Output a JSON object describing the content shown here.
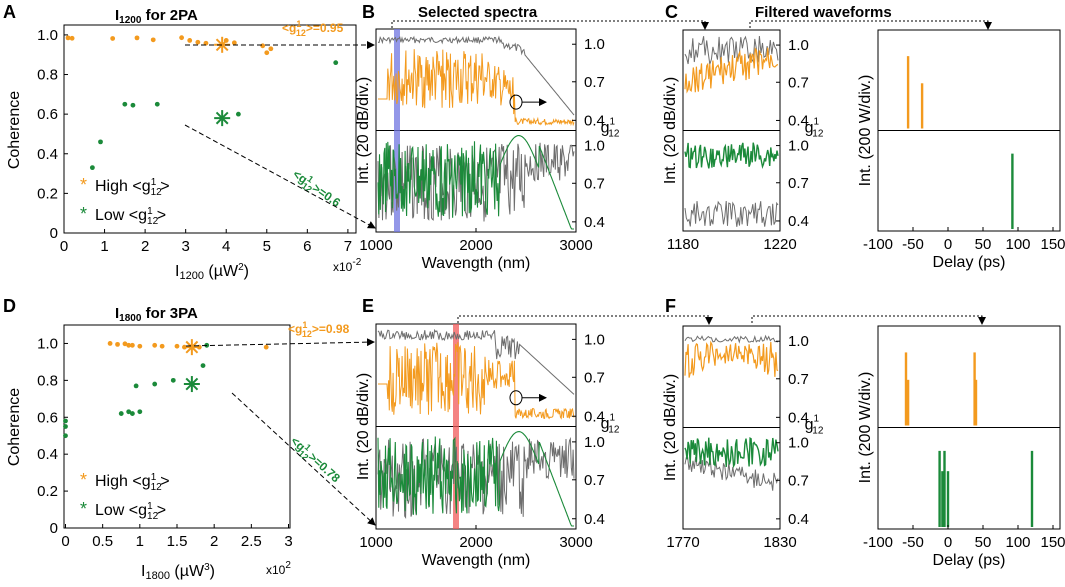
{
  "colors": {
    "high": "#f39a1e",
    "low": "#1b8a3a",
    "gray": "#6e6e6e",
    "blue_band": "#6f74e0",
    "red_band": "#f05a5a"
  },
  "panel_labels": {
    "A": "A",
    "B": "B",
    "C": "C",
    "D": "D",
    "E": "E",
    "F": "F"
  },
  "headers": {
    "selected_spectra": "Selected spectra",
    "filtered_waveforms": "Filtered waveforms"
  },
  "chart_data": [
    {
      "id": "A",
      "type": "scatter",
      "title_main": "I",
      "title_sub": "1200",
      "title_rest": " for 2PA",
      "ylabel": "Coherence",
      "xlabel_main": "I",
      "xlabel_sub": "1200",
      "xlabel_rest": " (µW",
      "xlabel_sup": "2",
      "xlabel_end": ")",
      "x_scale": "x10",
      "x_scale_sup": "-2",
      "xlim": [
        0,
        7.2
      ],
      "ylim": [
        0,
        1.05
      ],
      "xticks": [
        "0",
        "1",
        "2",
        "3",
        "4",
        "5",
        "6",
        "7"
      ],
      "yticks": [
        "0",
        "0.2",
        "0.4",
        "0.6",
        "0.8",
        "1.0"
      ],
      "series": [
        {
          "name": "High <g12>",
          "x": [
            0.1,
            0.2,
            1.2,
            1.8,
            2.2,
            2.9,
            3.1,
            3.3,
            3.5,
            4.0,
            4.2,
            4.9,
            5.0,
            5.1
          ],
          "y": [
            0.985,
            0.983,
            0.982,
            0.985,
            0.975,
            0.986,
            0.972,
            0.963,
            0.958,
            0.972,
            0.96,
            0.945,
            0.91,
            0.93
          ]
        },
        {
          "name": "Low <g12>",
          "x": [
            0.7,
            0.9,
            1.5,
            1.7,
            2.3,
            4.3,
            6.7
          ],
          "y": [
            0.33,
            0.46,
            0.65,
            0.645,
            0.65,
            0.6,
            0.86
          ]
        }
      ],
      "highlight": [
        {
          "series": "High",
          "x": 3.9,
          "y": 0.95
        },
        {
          "series": "Low",
          "x": 3.9,
          "y": 0.58
        }
      ],
      "legend": {
        "high_label": "High <g",
        "low_label": "Low <g",
        "sub": "12",
        "sup": "1",
        "close": ">"
      },
      "annotations": [
        {
          "series": "High",
          "text": "<g",
          "sup": "1",
          "sub": "12",
          "rest": ">=0.95"
        },
        {
          "series": "Low",
          "text": "<g",
          "sup": "1",
          "sub": "12",
          "rest": ">=0.6"
        }
      ]
    },
    {
      "id": "B",
      "type": "line",
      "xlabel": "Wavength (nm)",
      "xticks": [
        "1000",
        "2000",
        "3000"
      ],
      "xlim": [
        1000,
        3000
      ],
      "ylabel": "Int. (20 dB/div.)",
      "right_ticks": [
        "1.0",
        "0.7",
        "0.4"
      ],
      "right_label": "g",
      "right_sub": "12",
      "right_sup": "1",
      "band_nm": [
        1180,
        1220
      ],
      "band_color": "blue"
    },
    {
      "id": "C",
      "type": "line",
      "xticks": [
        "1180",
        "1220"
      ],
      "xlim": [
        1180,
        1220
      ],
      "ylabel": "Int. (20 dB/div.)",
      "right_ticks": [
        "1.0",
        "0.7",
        "0.4"
      ],
      "right_label": "g",
      "right_sub": "12",
      "right_sup": "1"
    },
    {
      "id": "C-waveforms",
      "type": "line",
      "xlabel": "Delay (ps)",
      "xticks": [
        "-100",
        "-50",
        "0",
        "50",
        "100",
        "150"
      ],
      "xlim": [
        -100,
        160
      ],
      "ylabel": "Int. (200 W/div.)",
      "top_spikes_ps": [
        -57,
        -37
      ],
      "bottom_spikes_ps": [
        92
      ]
    },
    {
      "id": "D",
      "type": "scatter",
      "title_main": "I",
      "title_sub": "1800",
      "title_rest": " for 3PA",
      "ylabel": "Coherence",
      "xlabel_main": "I",
      "xlabel_sub": "1800",
      "xlabel_rest": " (µW",
      "xlabel_sup": "3",
      "xlabel_end": ")",
      "x_scale": "x10",
      "x_scale_sup": "2",
      "xlim": [
        -0.02,
        3.02
      ],
      "ylim": [
        0,
        1.1
      ],
      "xticks": [
        "0",
        "0.5",
        "1",
        "1.5",
        "2",
        "2.5",
        "3"
      ],
      "yticks": [
        "0",
        "0.2",
        "0.4",
        "0.6",
        "0.8",
        "1.0"
      ],
      "series": [
        {
          "name": "High <g12>",
          "x": [
            0.6,
            0.7,
            0.8,
            0.85,
            0.9,
            1.0,
            1.2,
            1.3,
            1.5,
            1.6,
            1.8,
            2.7
          ],
          "y": [
            1.0,
            0.995,
            0.998,
            0.99,
            0.99,
            0.985,
            0.99,
            0.985,
            0.985,
            0.98,
            0.98,
            0.98
          ]
        },
        {
          "name": "Low <g12>",
          "x": [
            0.0,
            0.0,
            0.0,
            0.75,
            0.85,
            0.9,
            0.95,
            1.0,
            1.2,
            1.45,
            1.85,
            1.9
          ],
          "y": [
            0.5,
            0.55,
            0.58,
            0.62,
            0.63,
            0.62,
            0.77,
            0.63,
            0.78,
            0.8,
            0.88,
            0.99
          ]
        }
      ],
      "highlight": [
        {
          "series": "High",
          "x": 1.7,
          "y": 0.98
        },
        {
          "series": "Low",
          "x": 1.7,
          "y": 0.78
        }
      ],
      "legend": {
        "high_label": "High <g",
        "low_label": "Low <g",
        "sub": "12",
        "sup": "1",
        "close": ">"
      },
      "annotations": [
        {
          "series": "High",
          "text": "<g",
          "sup": "1",
          "sub": "12",
          "rest": ">=0.98"
        },
        {
          "series": "Low",
          "text": "<g",
          "sup": "1",
          "sub": "12",
          "rest": ">=0.78"
        }
      ]
    },
    {
      "id": "E",
      "type": "line",
      "xlabel": "Wavength (nm)",
      "xticks": [
        "1000",
        "2000",
        "3000"
      ],
      "xlim": [
        1000,
        3000
      ],
      "ylabel": "Int. (20 dB/div.)",
      "right_ticks": [
        "1.0",
        "0.7",
        "0.4"
      ],
      "right_label": "g",
      "right_sub": "12",
      "right_sup": "1",
      "band_nm": [
        1770,
        1830
      ],
      "band_color": "red"
    },
    {
      "id": "F",
      "type": "line",
      "xticks": [
        "1770",
        "1830"
      ],
      "xlim": [
        1770,
        1830
      ],
      "ylabel": "Int. (20 dB/div.)",
      "right_ticks": [
        "1.0",
        "0.7",
        "0.4"
      ],
      "right_label": "g",
      "right_sub": "12",
      "right_sup": "1"
    },
    {
      "id": "F-waveforms",
      "type": "line",
      "xlabel": "Delay (ps)",
      "xticks": [
        "-100",
        "-50",
        "0",
        "50",
        "100",
        "150"
      ],
      "xlim": [
        -100,
        160
      ],
      "ylabel": "Int. (200 W/div.)",
      "top_spikes_ps": [
        -60,
        -57,
        38,
        40
      ],
      "bottom_spikes_ps": [
        -12,
        -8,
        -5,
        0,
        120
      ]
    }
  ]
}
